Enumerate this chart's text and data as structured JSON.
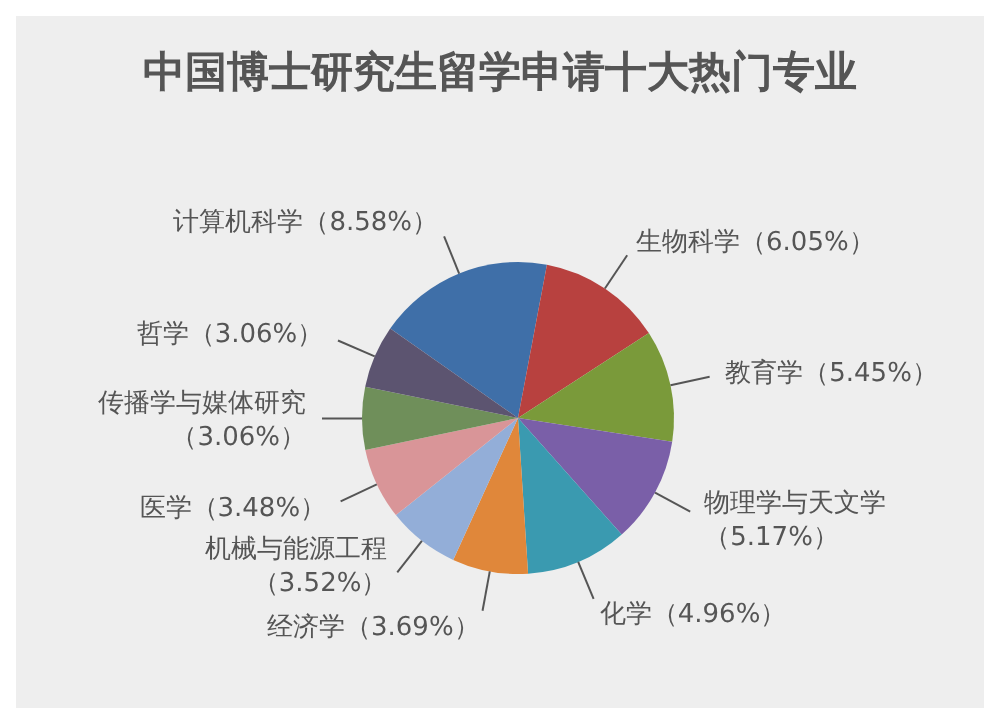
{
  "chart_data": {
    "type": "pie",
    "title": "中国博士研究生留学申请十大热门专业",
    "categories": [
      "计算机科学",
      "生物科学",
      "教育学",
      "物理学与天文学",
      "化学",
      "经济学",
      "机械与能源工程",
      "医学",
      "传播学与媒体研究",
      "哲学"
    ],
    "values": [
      8.58,
      6.05,
      5.45,
      5.17,
      4.96,
      3.69,
      3.52,
      3.48,
      3.06,
      3.06
    ],
    "value_labels": [
      "（8.58%）",
      "（6.05%）",
      "（5.45%）",
      "（5.17%）",
      "（4.96%）",
      "（3.69%）",
      "（3.52%）",
      "（3.48%）",
      "（3.06%）",
      "（3.06%）"
    ],
    "colors": [
      "#3f6fa8",
      "#b8413f",
      "#7a9a3a",
      "#7a5fa8",
      "#3a9ab0",
      "#e0873a",
      "#93aed8",
      "#d99598",
      "#6f8f5a",
      "#5c5470"
    ],
    "legend": false
  }
}
